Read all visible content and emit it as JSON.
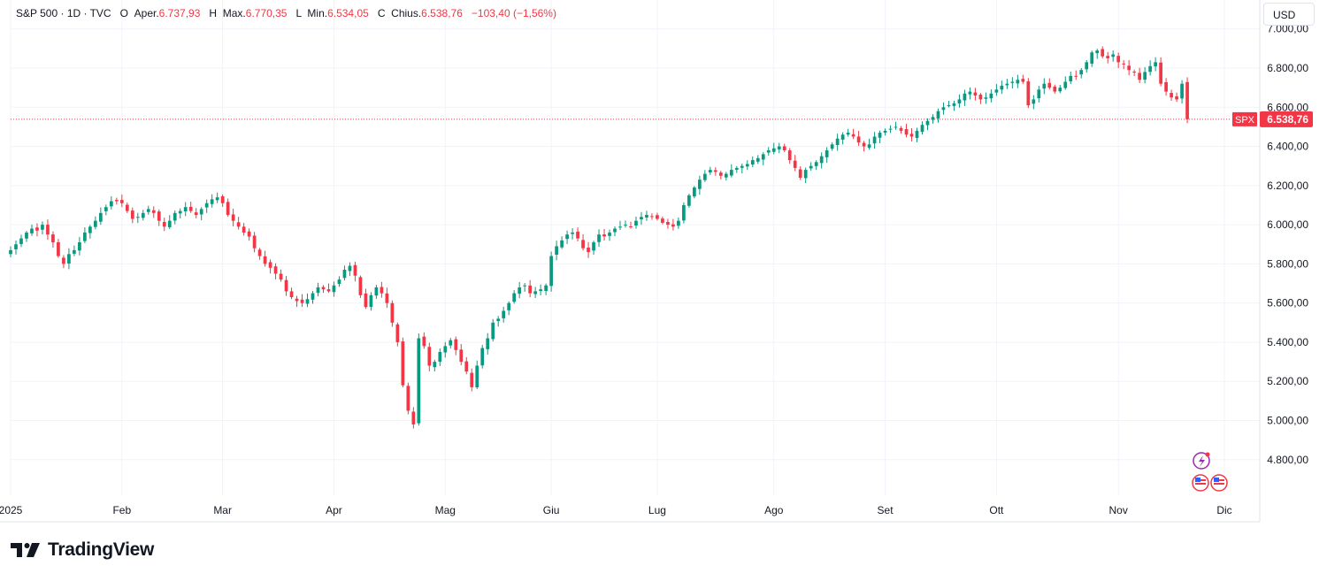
{
  "legend": {
    "symbol_line": "S&P 500 · 1D · TVC",
    "open_label": "O",
    "open_name": "Aper.",
    "open_value": "6.737,93",
    "high_label": "H",
    "high_name": "Max.",
    "high_value": "6.770,35",
    "low_label": "L",
    "low_name": "Min.",
    "low_value": "6.534,05",
    "close_label": "C",
    "close_name": "Chius.",
    "close_value": "6.538,76",
    "change": "−103,40 (−1,56%)"
  },
  "currency_button": "USD",
  "price_tag": {
    "symbol": "SPX",
    "value": "6.538,76"
  },
  "brand": "TradingView",
  "colors": {
    "up": "#089981",
    "down": "#f23645",
    "grid": "#f0f3fa",
    "text": "#131722"
  },
  "chart_data": {
    "type": "candlestick",
    "title": "S&P 500 · 1D · TVC",
    "yrange": [
      4650,
      7080
    ],
    "yticks": [
      4800,
      5000,
      5200,
      5400,
      5600,
      5800,
      6000,
      6200,
      6400,
      6600,
      6800,
      7000
    ],
    "ytick_labels": [
      "4.800,00",
      "5.000,00",
      "5.200,00",
      "5.400,00",
      "5.600,00",
      "5.800,00",
      "6.000,00",
      "6.200,00",
      "6.400,00",
      "6.600,00",
      "6.800,00",
      "7.000,00"
    ],
    "xrange": [
      0,
      230
    ],
    "xticks": [
      {
        "label": "2025",
        "t": 0
      },
      {
        "label": "Feb",
        "t": 21
      },
      {
        "label": "Mar",
        "t": 40
      },
      {
        "label": "Apr",
        "t": 61
      },
      {
        "label": "Mag",
        "t": 82
      },
      {
        "label": "Giu",
        "t": 102
      },
      {
        "label": "Lug",
        "t": 122
      },
      {
        "label": "Ago",
        "t": 144
      },
      {
        "label": "Set",
        "t": 165
      },
      {
        "label": "Ott",
        "t": 186
      },
      {
        "label": "Nov",
        "t": 209
      },
      {
        "label": "Dic",
        "t": 229
      }
    ],
    "last_close": 6538.76,
    "close_series": [
      5870,
      5900,
      5930,
      5960,
      5980,
      5970,
      6000,
      5950,
      5910,
      5840,
      5800,
      5850,
      5870,
      5910,
      5960,
      5990,
      6020,
      6060,
      6090,
      6120,
      6120,
      6110,
      6070,
      6030,
      6040,
      6060,
      6080,
      6060,
      6020,
      5990,
      6020,
      6060,
      6070,
      6090,
      6070,
      6050,
      6080,
      6110,
      6130,
      6140,
      6110,
      6050,
      6020,
      5990,
      5960,
      5940,
      5880,
      5840,
      5800,
      5780,
      5750,
      5720,
      5660,
      5630,
      5610,
      5600,
      5620,
      5650,
      5680,
      5670,
      5660,
      5690,
      5720,
      5770,
      5790,
      5740,
      5640,
      5580,
      5640,
      5680,
      5650,
      5600,
      5500,
      5400,
      5180,
      5050,
      4980,
      5420,
      5380,
      5280,
      5300,
      5350,
      5380,
      5410,
      5360,
      5300,
      5250,
      5170,
      5280,
      5370,
      5420,
      5500,
      5520,
      5560,
      5600,
      5650,
      5680,
      5690,
      5650,
      5660,
      5670,
      5690,
      5840,
      5890,
      5920,
      5950,
      5960,
      5930,
      5880,
      5860,
      5910,
      5950,
      5940,
      5960,
      5980,
      5990,
      6000,
      5990,
      6020,
      6040,
      6050,
      6040,
      6030,
      6010,
      6000,
      5990,
      6020,
      6100,
      6150,
      6190,
      6230,
      6260,
      6280,
      6270,
      6250,
      6260,
      6280,
      6290,
      6300,
      6310,
      6330,
      6340,
      6360,
      6380,
      6390,
      6400,
      6380,
      6330,
      6290,
      6240,
      6280,
      6300,
      6320,
      6350,
      6380,
      6410,
      6440,
      6460,
      6470,
      6450,
      6420,
      6400,
      6410,
      6450,
      6470,
      6480,
      6490,
      6500,
      6480,
      6460,
      6450,
      6480,
      6510,
      6530,
      6550,
      6580,
      6600,
      6610,
      6620,
      6640,
      6670,
      6680,
      6660,
      6640,
      6650,
      6670,
      6690,
      6710,
      6720,
      6730,
      6740,
      6730,
      6610,
      6640,
      6690,
      6720,
      6700,
      6680,
      6700,
      6730,
      6760,
      6760,
      6790,
      6830,
      6880,
      6890,
      6860,
      6850,
      6870,
      6830,
      6820,
      6790,
      6780,
      6740,
      6780,
      6810,
      6830,
      6720,
      6680,
      6650,
      6640,
      6720,
      6539
    ]
  }
}
